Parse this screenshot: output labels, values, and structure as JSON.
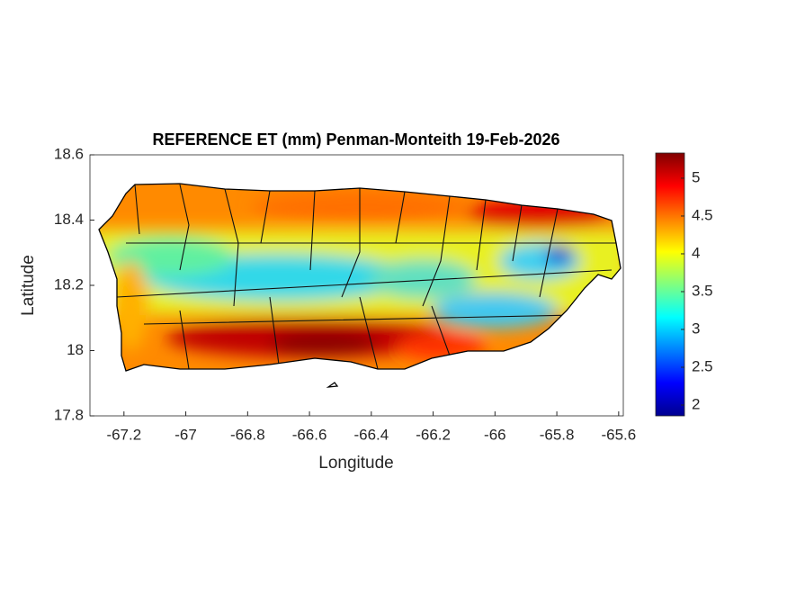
{
  "chart_data": {
    "type": "map",
    "title": "REFERENCE ET (mm) Penman-Monteith 19-Feb-2026",
    "xlabel": "Longitude",
    "ylabel": "Latitude",
    "xlim": [
      -67.31,
      -65.585
    ],
    "xticks": [
      -67.2,
      -67,
      -66.8,
      -66.6,
      -66.4,
      -66.2,
      -66,
      -65.8,
      -65.6
    ],
    "ylim": [
      17.8,
      18.6
    ],
    "yticks": [
      17.8,
      18,
      18.2,
      18.4,
      18.6
    ],
    "colorbar": {
      "lim": [
        1.857,
        5.333
      ],
      "ticks": [
        2,
        2.5,
        3,
        3.5,
        4,
        4.5,
        5
      ],
      "colormap": "jet"
    }
  }
}
